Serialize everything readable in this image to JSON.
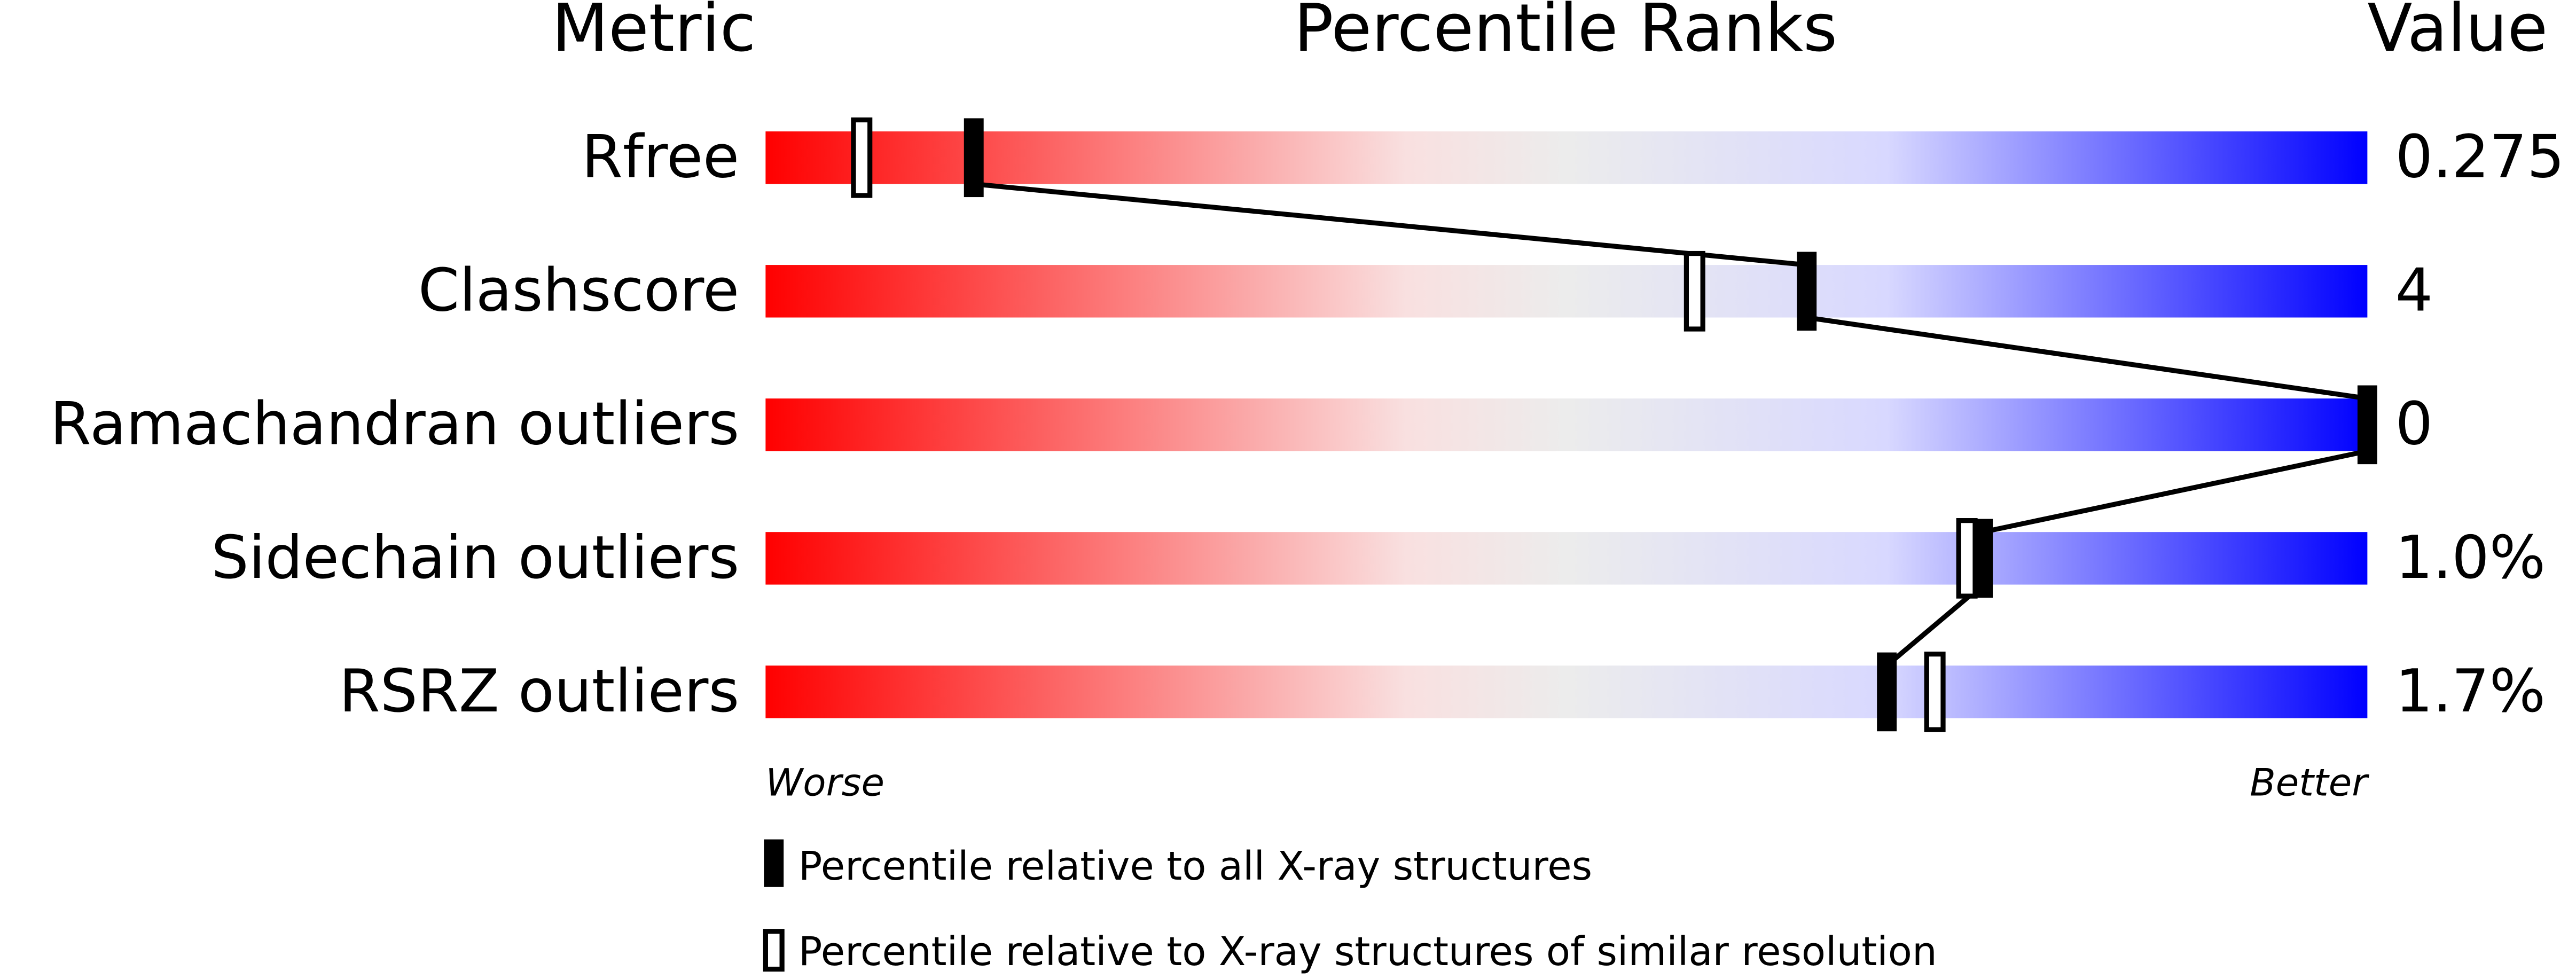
{
  "chart_data": {
    "type": "percentile",
    "column_headers": [
      "Metric",
      "Percentile Ranks",
      "Value"
    ],
    "categories": [
      "Rfree",
      "Clashscore",
      "Ramachandran outliers",
      "Sidechain outliers",
      "RSRZ outliers"
    ],
    "metric_values": [
      "0.275",
      "4",
      "0",
      "1.0%",
      "1.7%"
    ],
    "series": [
      {
        "name": "Percentile relative to all X-ray structures",
        "color": "#000000",
        "values": [
          13,
          65,
          100,
          76,
          70
        ]
      },
      {
        "name": "Percentile relative to X-ray structures of similar resolution",
        "color": "#ffffff",
        "values": [
          6,
          58,
          null,
          75,
          73
        ]
      }
    ],
    "xlim": [
      0,
      100
    ],
    "scale_labels": [
      "Worse",
      "Better"
    ]
  }
}
